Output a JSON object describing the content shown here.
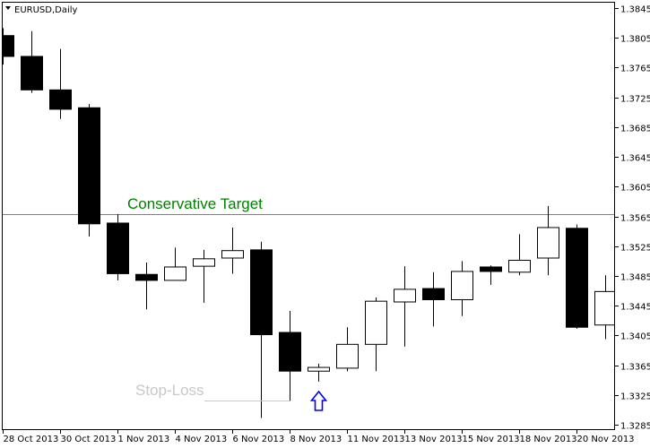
{
  "window": {
    "title": "EURUSD,Daily",
    "menu_icon": "triangle-down-icon"
  },
  "colors": {
    "bear_body": "#000000",
    "bull_body": "#ffffff",
    "candle_outline": "#000000",
    "target_line": "#808080",
    "target_label": "#008000",
    "stoploss": "#c8c8c8",
    "arrow": "#0000ff",
    "background": "#ffffff"
  },
  "chart_data": {
    "type": "candlestick",
    "title": "EURUSD,Daily",
    "ylim": [
      1.3285,
      1.3845
    ],
    "grid": false,
    "y_ticks": [
      "1.3845",
      "1.3805",
      "1.3765",
      "1.3725",
      "1.3685",
      "1.3645",
      "1.3605",
      "1.3565",
      "1.3525",
      "1.3485",
      "1.3445",
      "1.3405",
      "1.3365",
      "1.3325",
      "1.3285"
    ],
    "x_ticks": [
      {
        "index": 0,
        "label": "28 Oct 2013"
      },
      {
        "index": 2,
        "label": "30 Oct 2013"
      },
      {
        "index": 4,
        "label": "1 Nov 2013"
      },
      {
        "index": 6,
        "label": "4 Nov 2013"
      },
      {
        "index": 8,
        "label": "6 Nov 2013"
      },
      {
        "index": 10,
        "label": "8 Nov 2013"
      },
      {
        "index": 12,
        "label": "11 Nov 2013"
      },
      {
        "index": 14,
        "label": "13 Nov 2013"
      },
      {
        "index": 16,
        "label": "15 Nov 2013"
      },
      {
        "index": 18,
        "label": "18 Nov 2013"
      },
      {
        "index": 20,
        "label": "20 Nov 2013"
      }
    ],
    "candles": [
      {
        "o": 1.3808,
        "h": 1.3818,
        "l": 1.3769,
        "c": 1.378
      },
      {
        "o": 1.378,
        "h": 1.3814,
        "l": 1.3731,
        "c": 1.3735
      },
      {
        "o": 1.3735,
        "h": 1.379,
        "l": 1.3696,
        "c": 1.3709
      },
      {
        "o": 1.3711,
        "h": 1.3716,
        "l": 1.3538,
        "c": 1.3555
      },
      {
        "o": 1.3556,
        "h": 1.3568,
        "l": 1.3479,
        "c": 1.3488
      },
      {
        "o": 1.3487,
        "h": 1.3503,
        "l": 1.344,
        "c": 1.3479
      },
      {
        "o": 1.3479,
        "h": 1.3523,
        "l": 1.3479,
        "c": 1.3497
      },
      {
        "o": 1.3498,
        "h": 1.352,
        "l": 1.3449,
        "c": 1.3508
      },
      {
        "o": 1.3509,
        "h": 1.355,
        "l": 1.3488,
        "c": 1.3519
      },
      {
        "o": 1.352,
        "h": 1.3531,
        "l": 1.3294,
        "c": 1.3406
      },
      {
        "o": 1.3409,
        "h": 1.3438,
        "l": 1.3317,
        "c": 1.3357
      },
      {
        "o": 1.3357,
        "h": 1.3367,
        "l": 1.3343,
        "c": 1.3362
      },
      {
        "o": 1.3361,
        "h": 1.3416,
        "l": 1.3357,
        "c": 1.3393
      },
      {
        "o": 1.3393,
        "h": 1.3456,
        "l": 1.3357,
        "c": 1.3451
      },
      {
        "o": 1.345,
        "h": 1.3498,
        "l": 1.339,
        "c": 1.3467
      },
      {
        "o": 1.3468,
        "h": 1.349,
        "l": 1.3417,
        "c": 1.3453
      },
      {
        "o": 1.3453,
        "h": 1.3505,
        "l": 1.3431,
        "c": 1.3491
      },
      {
        "o": 1.3497,
        "h": 1.3499,
        "l": 1.3473,
        "c": 1.3491
      },
      {
        "o": 1.349,
        "h": 1.3541,
        "l": 1.3486,
        "c": 1.3506
      },
      {
        "o": 1.3509,
        "h": 1.3579,
        "l": 1.3486,
        "c": 1.355
      },
      {
        "o": 1.3549,
        "h": 1.3554,
        "l": 1.3414,
        "c": 1.3416
      },
      {
        "o": 1.3419,
        "h": 1.3486,
        "l": 1.34,
        "c": 1.3464
      }
    ],
    "annotations": {
      "target": {
        "label": "Conservative Target",
        "price": 1.3568
      },
      "stop_loss": {
        "label": "Stop-Loss",
        "price": 1.3317,
        "from_index": 7,
        "to_index": 10
      },
      "entry_arrow": {
        "icon": "arrow-up-icon",
        "index": 11,
        "direction": "up"
      }
    }
  }
}
